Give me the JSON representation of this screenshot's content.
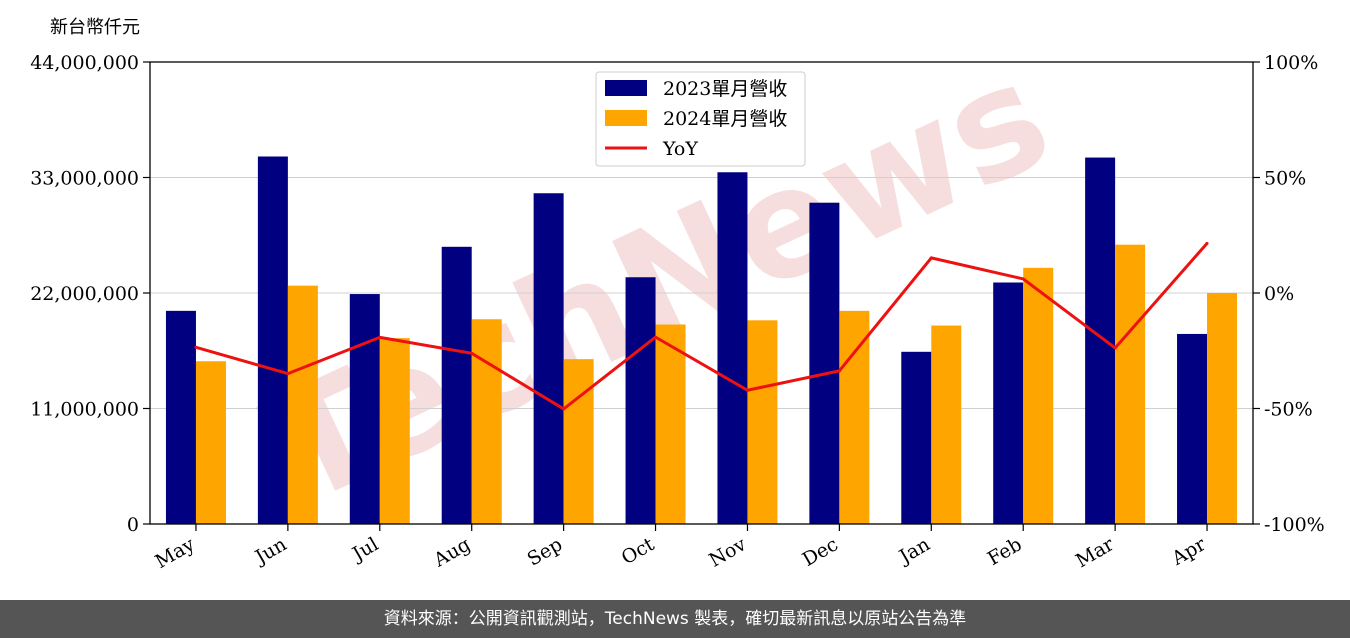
{
  "watermark": "TechNews",
  "footer": {
    "text": "資料來源：公開資訊觀測站，TechNews 製表，確切最新訊息以原站公告為準"
  },
  "colors": {
    "series_2023": "#000080",
    "series_2024": "#FFA500",
    "yoy": "#EE1111",
    "watermark": "#F4D4D4"
  },
  "chart_data": {
    "type": "bar",
    "unit_label": "新台幣仟元",
    "categories": [
      "May",
      "Jun",
      "Jul",
      "Aug",
      "Sep",
      "Oct",
      "Nov",
      "Dec",
      "Jan",
      "Feb",
      "Mar",
      "Apr"
    ],
    "series": [
      {
        "name": "2023單月營收",
        "values": [
          20300000,
          35000000,
          21900000,
          26400000,
          31500000,
          23500000,
          33500000,
          30600000,
          16400000,
          23000000,
          34900000,
          18100000
        ]
      },
      {
        "name": "2024單月營收",
        "values": [
          15500000,
          22700000,
          17700000,
          19500000,
          15700000,
          19000000,
          19400000,
          20300000,
          18900000,
          24400000,
          26600000,
          22000000
        ]
      }
    ],
    "line_series": {
      "name": "YoY",
      "axis": "right",
      "values": [
        -23.5,
        -34.9,
        -19.2,
        -26.1,
        -50.2,
        -19.1,
        -42.1,
        -33.7,
        15.2,
        6.1,
        -23.8,
        21.5
      ]
    },
    "y_left": {
      "min": 0,
      "max": 44000000,
      "ticks": [
        0,
        11000000,
        22000000,
        33000000,
        44000000
      ],
      "tick_labels": [
        "0",
        "11,000,000",
        "22,000,000",
        "33,000,000",
        "44,000,000"
      ]
    },
    "y_right": {
      "min": -100,
      "max": 100,
      "ticks": [
        -100,
        -50,
        0,
        50,
        100
      ],
      "tick_labels": [
        "-100%",
        "-50%",
        "0%",
        "50%",
        "100%"
      ]
    },
    "grid": "horizontal",
    "legend_position": "top-center"
  }
}
